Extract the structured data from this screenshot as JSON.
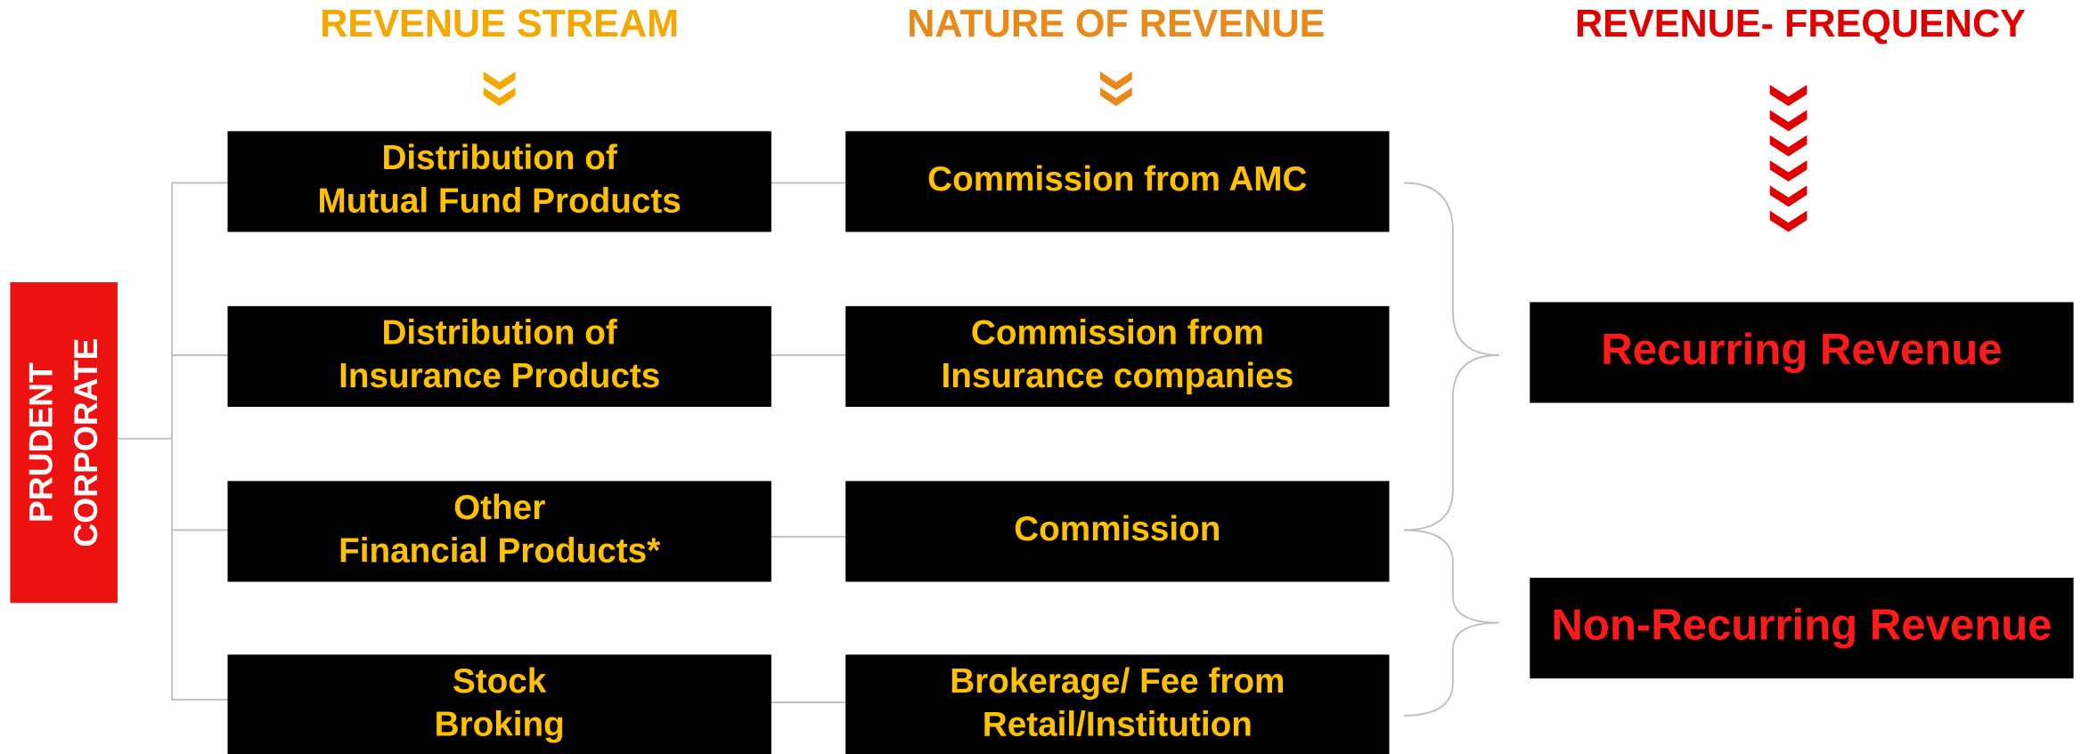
{
  "headers": [
    "REVENUE STREAM",
    "NATURE OF REVENUE",
    "REVENUE- FREQUENCY"
  ],
  "root": [
    "PRUDENT",
    "CORPORATE"
  ],
  "streams": [
    [
      "Distribution of",
      "Mutual Fund Products"
    ],
    [
      "Distribution of",
      "Insurance Products"
    ],
    [
      "Other",
      "Financial Products*"
    ],
    [
      "Stock",
      "Broking"
    ]
  ],
  "natures": [
    [
      "Commission from AMC"
    ],
    [
      "Commission from",
      "Insurance companies"
    ],
    [
      "Commission"
    ],
    [
      "Brokerage/ Fee from",
      "Retail/Institution"
    ]
  ],
  "frequencies": [
    [
      "Recurring Revenue"
    ],
    [
      "Non-Recurring Revenue"
    ]
  ]
}
